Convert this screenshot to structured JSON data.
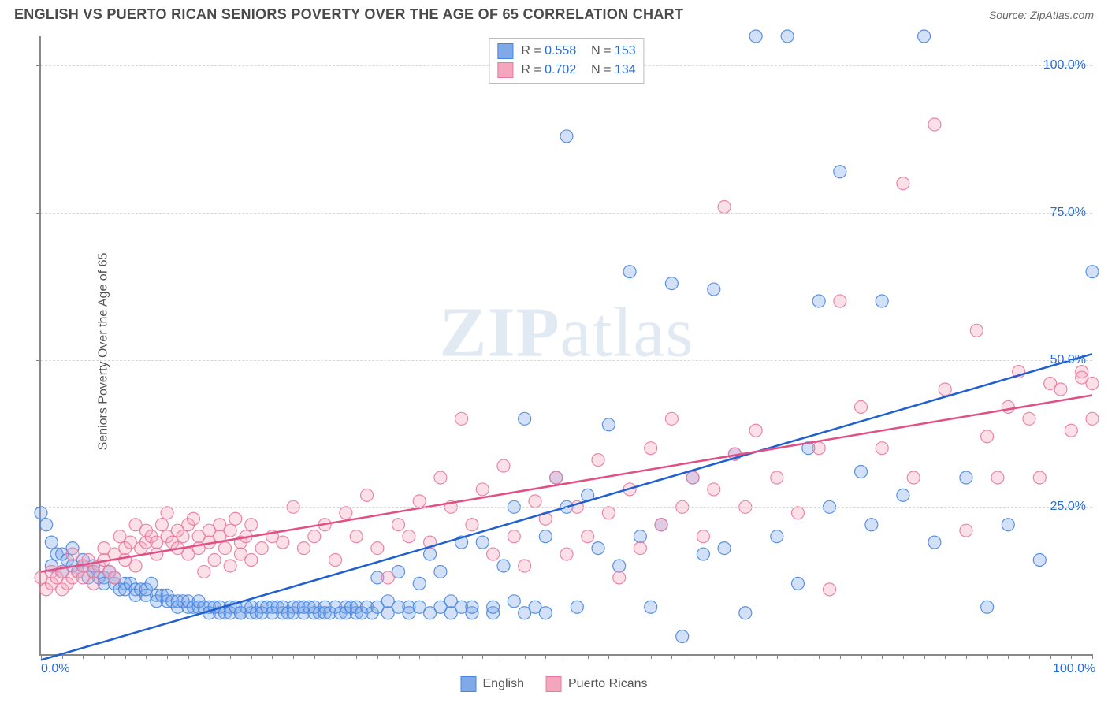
{
  "header": {
    "title": "ENGLISH VS PUERTO RICAN SENIORS POVERTY OVER THE AGE OF 65 CORRELATION CHART",
    "source_label": "Source:",
    "source_value": "ZipAtlas.com"
  },
  "chart": {
    "type": "scatter",
    "ylabel": "Seniors Poverty Over the Age of 65",
    "watermark": "ZIPatlas",
    "xlim": [
      0,
      100
    ],
    "ylim": [
      0,
      105
    ],
    "x_tick_labels": [
      "0.0%",
      "100.0%"
    ],
    "x_tick_positions": [
      0,
      100
    ],
    "x_minor_tick_step": 2,
    "y_tick_labels": [
      "25.0%",
      "50.0%",
      "75.0%",
      "100.0%"
    ],
    "y_tick_positions": [
      25,
      50,
      75,
      100
    ],
    "grid_color": "#d8d8d8",
    "background_color": "#ffffff",
    "marker_radius": 8,
    "marker_fill_opacity": 0.35,
    "marker_stroke_opacity": 0.9,
    "line_width": 2.5,
    "series": [
      {
        "name": "English",
        "color_fill": "#7fa9e8",
        "color_stroke": "#4a86e0",
        "line_color": "#1f5fd0",
        "R": "0.558",
        "N": "153",
        "trend": {
          "x1": 0,
          "y1": -1,
          "x2": 100,
          "y2": 51
        },
        "points": [
          [
            0,
            24
          ],
          [
            0.5,
            22
          ],
          [
            1,
            19
          ],
          [
            1,
            15
          ],
          [
            1.5,
            17
          ],
          [
            2,
            17
          ],
          [
            2,
            14
          ],
          [
            2.5,
            16
          ],
          [
            3,
            15
          ],
          [
            3,
            18
          ],
          [
            3.5,
            14
          ],
          [
            4,
            15
          ],
          [
            4,
            16
          ],
          [
            4.5,
            13
          ],
          [
            5,
            14
          ],
          [
            5,
            15
          ],
          [
            5.5,
            13
          ],
          [
            6,
            13
          ],
          [
            6,
            12
          ],
          [
            6.5,
            14
          ],
          [
            7,
            12
          ],
          [
            7,
            13
          ],
          [
            7.5,
            11
          ],
          [
            8,
            12
          ],
          [
            8,
            11
          ],
          [
            8.5,
            12
          ],
          [
            9,
            11
          ],
          [
            9,
            10
          ],
          [
            9.5,
            11
          ],
          [
            10,
            10
          ],
          [
            10,
            11
          ],
          [
            10.5,
            12
          ],
          [
            11,
            10
          ],
          [
            11,
            9
          ],
          [
            11.5,
            10
          ],
          [
            12,
            9
          ],
          [
            12,
            10
          ],
          [
            12.5,
            9
          ],
          [
            13,
            9
          ],
          [
            13,
            8
          ],
          [
            13.5,
            9
          ],
          [
            14,
            8
          ],
          [
            14,
            9
          ],
          [
            14.5,
            8
          ],
          [
            15,
            8
          ],
          [
            15,
            9
          ],
          [
            15.5,
            8
          ],
          [
            16,
            8
          ],
          [
            16,
            7
          ],
          [
            16.5,
            8
          ],
          [
            17,
            7
          ],
          [
            17,
            8
          ],
          [
            17.5,
            7
          ],
          [
            18,
            8
          ],
          [
            18,
            7
          ],
          [
            18.5,
            8
          ],
          [
            19,
            7
          ],
          [
            19,
            7
          ],
          [
            19.5,
            8
          ],
          [
            20,
            7
          ],
          [
            20,
            8
          ],
          [
            20.5,
            7
          ],
          [
            21,
            8
          ],
          [
            21,
            7
          ],
          [
            21.5,
            8
          ],
          [
            22,
            8
          ],
          [
            22,
            7
          ],
          [
            22.5,
            8
          ],
          [
            23,
            7
          ],
          [
            23,
            8
          ],
          [
            23.5,
            7
          ],
          [
            24,
            8
          ],
          [
            24,
            7
          ],
          [
            24.5,
            8
          ],
          [
            25,
            7
          ],
          [
            25,
            8
          ],
          [
            25.5,
            8
          ],
          [
            26,
            7
          ],
          [
            26,
            8
          ],
          [
            26.5,
            7
          ],
          [
            27,
            8
          ],
          [
            27,
            7
          ],
          [
            27.5,
            7
          ],
          [
            28,
            8
          ],
          [
            28.5,
            7
          ],
          [
            29,
            8
          ],
          [
            29,
            7
          ],
          [
            29.5,
            8
          ],
          [
            30,
            7
          ],
          [
            30,
            8
          ],
          [
            30.5,
            7
          ],
          [
            31,
            8
          ],
          [
            31.5,
            7
          ],
          [
            32,
            8
          ],
          [
            32,
            13
          ],
          [
            33,
            7
          ],
          [
            33,
            9
          ],
          [
            34,
            8
          ],
          [
            34,
            14
          ],
          [
            35,
            8
          ],
          [
            35,
            7
          ],
          [
            36,
            8
          ],
          [
            36,
            12
          ],
          [
            37,
            7
          ],
          [
            37,
            17
          ],
          [
            38,
            8
          ],
          [
            38,
            14
          ],
          [
            39,
            7
          ],
          [
            39,
            9
          ],
          [
            40,
            8
          ],
          [
            40,
            19
          ],
          [
            41,
            7
          ],
          [
            41,
            8
          ],
          [
            42,
            19
          ],
          [
            43,
            7
          ],
          [
            43,
            8
          ],
          [
            44,
            15
          ],
          [
            45,
            25
          ],
          [
            45,
            9
          ],
          [
            46,
            7
          ],
          [
            46,
            40
          ],
          [
            47,
            8
          ],
          [
            48,
            20
          ],
          [
            48,
            7
          ],
          [
            49,
            30
          ],
          [
            50,
            88
          ],
          [
            50,
            25
          ],
          [
            51,
            8
          ],
          [
            52,
            27
          ],
          [
            53,
            18
          ],
          [
            54,
            39
          ],
          [
            55,
            15
          ],
          [
            56,
            65
          ],
          [
            57,
            20
          ],
          [
            58,
            8
          ],
          [
            59,
            22
          ],
          [
            60,
            63
          ],
          [
            61,
            3
          ],
          [
            62,
            30
          ],
          [
            63,
            17
          ],
          [
            64,
            62
          ],
          [
            65,
            18
          ],
          [
            66,
            34
          ],
          [
            67,
            7
          ],
          [
            68,
            105
          ],
          [
            70,
            20
          ],
          [
            71,
            105
          ],
          [
            72,
            12
          ],
          [
            73,
            35
          ],
          [
            74,
            60
          ],
          [
            75,
            25
          ],
          [
            76,
            82
          ],
          [
            78,
            31
          ],
          [
            79,
            22
          ],
          [
            80,
            60
          ],
          [
            82,
            27
          ],
          [
            84,
            105
          ],
          [
            85,
            19
          ],
          [
            88,
            30
          ],
          [
            90,
            8
          ],
          [
            92,
            22
          ],
          [
            95,
            16
          ],
          [
            100,
            65
          ]
        ]
      },
      {
        "name": "Puerto Ricans",
        "color_fill": "#f4a6bd",
        "color_stroke": "#e87aa0",
        "line_color": "#e15085",
        "R": "0.702",
        "N": "134",
        "trend": {
          "x1": 0,
          "y1": 14,
          "x2": 100,
          "y2": 44
        },
        "points": [
          [
            0,
            13
          ],
          [
            0.5,
            11
          ],
          [
            1,
            12
          ],
          [
            1,
            14
          ],
          [
            1.5,
            13
          ],
          [
            2,
            11
          ],
          [
            2,
            14
          ],
          [
            2.5,
            12
          ],
          [
            3,
            13
          ],
          [
            3,
            17
          ],
          [
            3.5,
            14
          ],
          [
            4,
            13
          ],
          [
            4,
            15
          ],
          [
            4.5,
            16
          ],
          [
            5,
            14
          ],
          [
            5,
            12
          ],
          [
            5.5,
            15
          ],
          [
            6,
            16
          ],
          [
            6,
            18
          ],
          [
            6.5,
            14
          ],
          [
            7,
            13
          ],
          [
            7,
            17
          ],
          [
            7.5,
            20
          ],
          [
            8,
            16
          ],
          [
            8,
            18
          ],
          [
            8.5,
            19
          ],
          [
            9,
            15
          ],
          [
            9,
            22
          ],
          [
            9.5,
            18
          ],
          [
            10,
            19
          ],
          [
            10,
            21
          ],
          [
            10.5,
            20
          ],
          [
            11,
            17
          ],
          [
            11,
            19
          ],
          [
            11.5,
            22
          ],
          [
            12,
            20
          ],
          [
            12,
            24
          ],
          [
            12.5,
            19
          ],
          [
            13,
            21
          ],
          [
            13,
            18
          ],
          [
            13.5,
            20
          ],
          [
            14,
            22
          ],
          [
            14,
            17
          ],
          [
            14.5,
            23
          ],
          [
            15,
            20
          ],
          [
            15,
            18
          ],
          [
            15.5,
            14
          ],
          [
            16,
            21
          ],
          [
            16,
            19
          ],
          [
            16.5,
            16
          ],
          [
            17,
            20
          ],
          [
            17,
            22
          ],
          [
            17.5,
            18
          ],
          [
            18,
            15
          ],
          [
            18,
            21
          ],
          [
            18.5,
            23
          ],
          [
            19,
            19
          ],
          [
            19,
            17
          ],
          [
            19.5,
            20
          ],
          [
            20,
            16
          ],
          [
            20,
            22
          ],
          [
            21,
            18
          ],
          [
            22,
            20
          ],
          [
            23,
            19
          ],
          [
            24,
            25
          ],
          [
            25,
            18
          ],
          [
            26,
            20
          ],
          [
            27,
            22
          ],
          [
            28,
            16
          ],
          [
            29,
            24
          ],
          [
            30,
            20
          ],
          [
            31,
            27
          ],
          [
            32,
            18
          ],
          [
            33,
            13
          ],
          [
            34,
            22
          ],
          [
            35,
            20
          ],
          [
            36,
            26
          ],
          [
            37,
            19
          ],
          [
            38,
            30
          ],
          [
            39,
            25
          ],
          [
            40,
            40
          ],
          [
            41,
            22
          ],
          [
            42,
            28
          ],
          [
            43,
            17
          ],
          [
            44,
            32
          ],
          [
            45,
            20
          ],
          [
            46,
            15
          ],
          [
            47,
            26
          ],
          [
            48,
            23
          ],
          [
            49,
            30
          ],
          [
            50,
            17
          ],
          [
            51,
            25
          ],
          [
            52,
            20
          ],
          [
            53,
            33
          ],
          [
            54,
            24
          ],
          [
            55,
            13
          ],
          [
            56,
            28
          ],
          [
            57,
            18
          ],
          [
            58,
            35
          ],
          [
            59,
            22
          ],
          [
            60,
            40
          ],
          [
            61,
            25
          ],
          [
            62,
            30
          ],
          [
            63,
            20
          ],
          [
            64,
            28
          ],
          [
            65,
            76
          ],
          [
            66,
            34
          ],
          [
            67,
            25
          ],
          [
            68,
            38
          ],
          [
            70,
            30
          ],
          [
            72,
            24
          ],
          [
            74,
            35
          ],
          [
            75,
            11
          ],
          [
            76,
            60
          ],
          [
            78,
            42
          ],
          [
            80,
            35
          ],
          [
            82,
            80
          ],
          [
            83,
            30
          ],
          [
            85,
            90
          ],
          [
            86,
            45
          ],
          [
            88,
            21
          ],
          [
            89,
            55
          ],
          [
            90,
            37
          ],
          [
            91,
            30
          ],
          [
            92,
            42
          ],
          [
            93,
            48
          ],
          [
            94,
            40
          ],
          [
            95,
            30
          ],
          [
            96,
            46
          ],
          [
            97,
            45
          ],
          [
            98,
            38
          ],
          [
            99,
            48
          ],
          [
            99,
            47
          ],
          [
            100,
            46
          ],
          [
            100,
            40
          ]
        ]
      }
    ],
    "bottom_legend": [
      {
        "label": "English",
        "fill": "#7fa9e8",
        "stroke": "#4a86e0"
      },
      {
        "label": "Puerto Ricans",
        "fill": "#f4a6bd",
        "stroke": "#e87aa0"
      }
    ]
  }
}
